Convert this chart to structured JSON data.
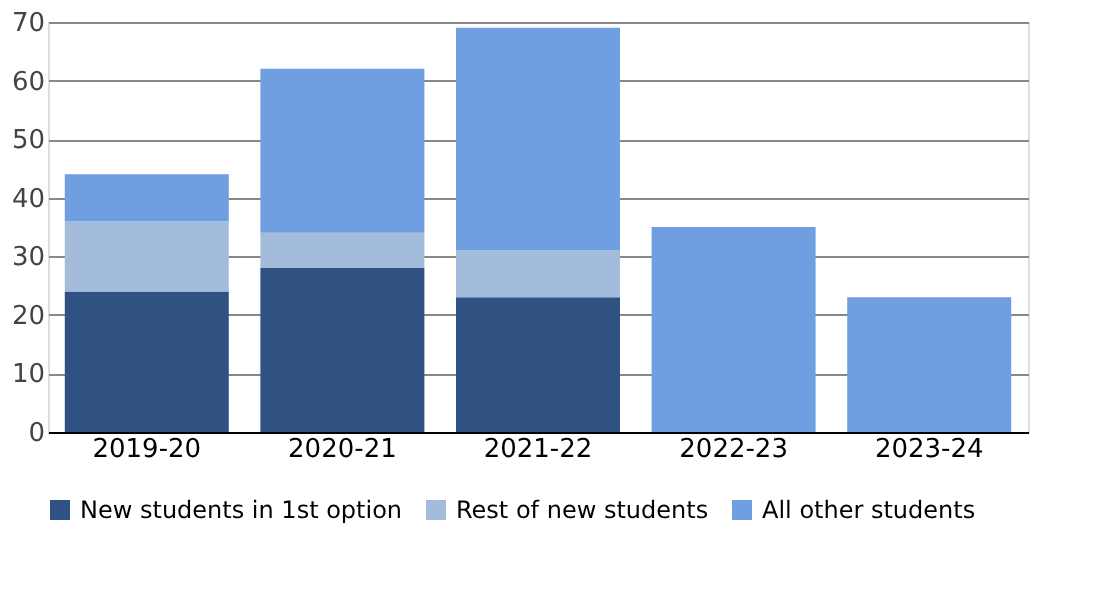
{
  "chart_data": {
    "type": "bar",
    "stacked": true,
    "categories": [
      "2019-20",
      "2020-21",
      "2021-22",
      "2022-23",
      "2023-24"
    ],
    "series": [
      {
        "name": "New students in 1st option",
        "color": "#2f5282",
        "values": [
          24,
          28,
          23,
          null,
          null
        ]
      },
      {
        "name": "Rest of new students",
        "color": "#a3bcdc",
        "values": [
          12,
          6,
          8,
          null,
          null
        ]
      },
      {
        "name": "All other students",
        "color": "#6f9fe0",
        "values": [
          8,
          28,
          38,
          35,
          23
        ]
      }
    ],
    "ylim": [
      0,
      70
    ],
    "yticks": [
      0,
      10,
      20,
      30,
      40,
      50,
      60,
      70
    ],
    "grid": "y",
    "legend": "bottom"
  }
}
